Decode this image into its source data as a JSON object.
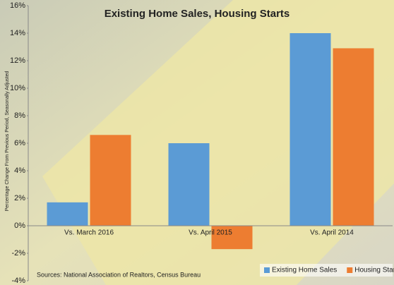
{
  "chart_data": {
    "type": "bar",
    "title": "Existing Home Sales, Housing Starts",
    "y_label": "Percentage Change From Previous Period, Seasonally Adjusted",
    "source": "Sources: National Association of Realtors, Census Bureau",
    "categories": [
      "Vs. March 2016",
      "Vs. April 2015",
      "Vs. April 2014"
    ],
    "series": [
      {
        "name": "Existing Home Sales",
        "color": "#5b9bd5",
        "values": [
          1.7,
          6.0,
          14.0
        ]
      },
      {
        "name": "Housing Starts",
        "color": "#ed7d31",
        "values": [
          6.6,
          -1.7,
          12.9
        ]
      }
    ],
    "ylim": [
      -4,
      16
    ],
    "yticks": [
      {
        "value": -4,
        "label": "-4%"
      },
      {
        "value": -2,
        "label": "-2%"
      },
      {
        "value": 0,
        "label": "0%"
      },
      {
        "value": 2,
        "label": "2%"
      },
      {
        "value": 4,
        "label": "4%"
      },
      {
        "value": 6,
        "label": "6%"
      },
      {
        "value": 8,
        "label": "8%"
      },
      {
        "value": 10,
        "label": "10%"
      },
      {
        "value": 12,
        "label": "12%"
      },
      {
        "value": 14,
        "label": "14%"
      },
      {
        "value": 16,
        "label": "16%"
      }
    ],
    "legend": "bottom-right"
  }
}
